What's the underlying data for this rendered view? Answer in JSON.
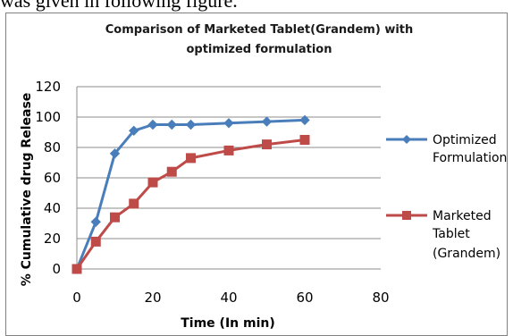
{
  "page": {
    "top_text": "was given in following figure."
  },
  "chart_data": {
    "type": "line",
    "title_lines": [
      "Comparison of Marketed Tablet(Grandem) with",
      "optimized formulation"
    ],
    "xlabel": "Time (In min)",
    "ylabel": "% Cumulative drug Release",
    "xlim": [
      0,
      80
    ],
    "ylim": [
      0,
      120
    ],
    "xticks": [
      0,
      20,
      40,
      60,
      80
    ],
    "yticks": [
      0,
      20,
      40,
      60,
      80,
      100,
      120
    ],
    "grid": "horizontal",
    "legend_position": "right",
    "series": [
      {
        "name_lines": [
          "Optimized",
          "Formulation"
        ],
        "color": "#4a7ebb",
        "marker": "diamond",
        "x": [
          0,
          5,
          10,
          15,
          20,
          25,
          30,
          40,
          50,
          60
        ],
        "y": [
          0,
          31,
          76,
          91,
          95,
          95,
          95,
          96,
          97,
          98
        ]
      },
      {
        "name_lines": [
          "Marketed",
          "Tablet",
          "(Grandem)"
        ],
        "color": "#be4b48",
        "marker": "square",
        "x": [
          0,
          5,
          10,
          15,
          20,
          25,
          30,
          40,
          50,
          60
        ],
        "y": [
          0,
          18,
          34,
          43,
          57,
          64,
          73,
          78,
          82,
          85
        ]
      }
    ]
  }
}
